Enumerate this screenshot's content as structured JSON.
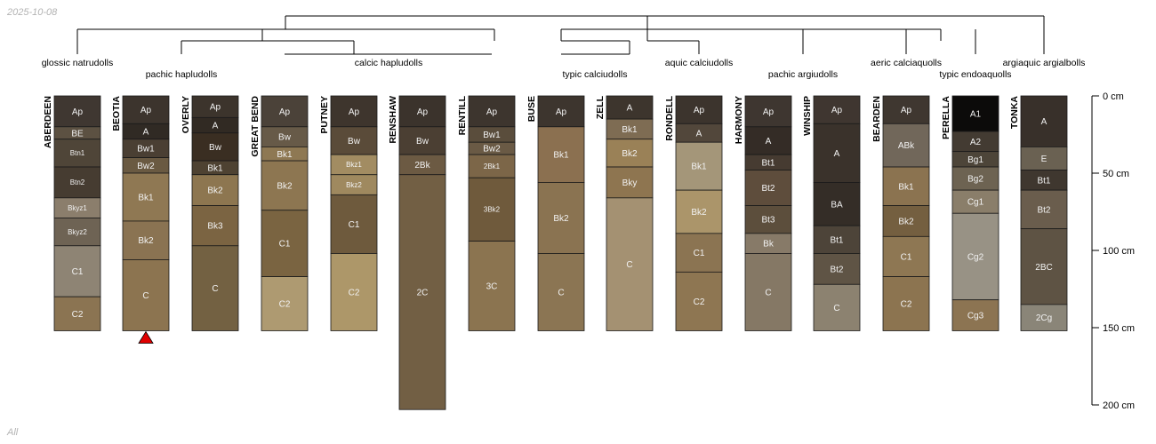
{
  "meta": {
    "date_text": "2025-10-08",
    "subset_text": "All"
  },
  "depth_axis": {
    "ticks": [
      0,
      50,
      100,
      150,
      200
    ],
    "unit": "cm",
    "max": 200
  },
  "classes": [
    "glossic natrudolls",
    "pachic hapludolls",
    "calcic hapludolls",
    "typic calciudolls",
    "aquic calciudolls",
    "pachic argiudolls",
    "aeric calciaquolls",
    "typic endoaquolls",
    "argiaquic argialbolls"
  ],
  "profiles": [
    {
      "name": "ABERDEEN",
      "marker": false,
      "horizons": [
        {
          "name": "Ap",
          "top": 0,
          "bottom": 20,
          "color": "#3f3731"
        },
        {
          "name": "BE",
          "top": 20,
          "bottom": 28,
          "color": "#5c5142"
        },
        {
          "name": "Btn1",
          "top": 28,
          "bottom": 46,
          "color": "#4f4538"
        },
        {
          "name": "Btn2",
          "top": 46,
          "bottom": 66,
          "color": "#463c31"
        },
        {
          "name": "Bkyz1",
          "top": 66,
          "bottom": 79,
          "color": "#8b7e6c"
        },
        {
          "name": "Bkyz2",
          "top": 79,
          "bottom": 97,
          "color": "#6e6354"
        },
        {
          "name": "C1",
          "top": 97,
          "bottom": 130,
          "color": "#8e8474"
        },
        {
          "name": "C2",
          "top": 130,
          "bottom": 152,
          "color": "#8b7452"
        }
      ]
    },
    {
      "name": "BEOTIA",
      "marker": true,
      "horizons": [
        {
          "name": "Ap",
          "top": 0,
          "bottom": 18,
          "color": "#3c342d"
        },
        {
          "name": "A",
          "top": 18,
          "bottom": 28,
          "color": "#302a24"
        },
        {
          "name": "Bw1",
          "top": 28,
          "bottom": 40,
          "color": "#4a3f33"
        },
        {
          "name": "Bw2",
          "top": 40,
          "bottom": 50,
          "color": "#6a5a42"
        },
        {
          "name": "Bk1",
          "top": 50,
          "bottom": 81,
          "color": "#8f7853"
        },
        {
          "name": "Bk2",
          "top": 81,
          "bottom": 106,
          "color": "#8a7352"
        },
        {
          "name": "C",
          "top": 106,
          "bottom": 152,
          "color": "#8c7450"
        }
      ]
    },
    {
      "name": "OVERLY",
      "marker": false,
      "horizons": [
        {
          "name": "Ap",
          "top": 0,
          "bottom": 14,
          "color": "#3c342c"
        },
        {
          "name": "A",
          "top": 14,
          "bottom": 24,
          "color": "#312a23"
        },
        {
          "name": "Bw",
          "top": 24,
          "bottom": 42,
          "color": "#3a2e22"
        },
        {
          "name": "Bk1",
          "top": 42,
          "bottom": 51,
          "color": "#4e4232"
        },
        {
          "name": "Bk2",
          "top": 51,
          "bottom": 71,
          "color": "#8d7650"
        },
        {
          "name": "Bk3",
          "top": 71,
          "bottom": 97,
          "color": "#7b6442"
        },
        {
          "name": "C",
          "top": 97,
          "bottom": 152,
          "color": "#736142"
        }
      ]
    },
    {
      "name": "GREAT BEND",
      "marker": false,
      "horizons": [
        {
          "name": "Ap",
          "top": 0,
          "bottom": 20,
          "color": "#4b4239"
        },
        {
          "name": "Bw",
          "top": 20,
          "bottom": 33,
          "color": "#675a48"
        },
        {
          "name": "Bk1",
          "top": 33,
          "bottom": 42,
          "color": "#8e7853"
        },
        {
          "name": "Bk2",
          "top": 42,
          "bottom": 74,
          "color": "#8d7651"
        },
        {
          "name": "C1",
          "top": 74,
          "bottom": 117,
          "color": "#7a6441"
        },
        {
          "name": "C2",
          "top": 117,
          "bottom": 152,
          "color": "#ae9a71"
        }
      ]
    },
    {
      "name": "PUTNEY",
      "marker": false,
      "horizons": [
        {
          "name": "Ap",
          "top": 0,
          "bottom": 20,
          "color": "#3e352d"
        },
        {
          "name": "Bw",
          "top": 20,
          "bottom": 38,
          "color": "#5a4b39"
        },
        {
          "name": "Bkz1",
          "top": 38,
          "bottom": 51,
          "color": "#a28c62"
        },
        {
          "name": "Bkz2",
          "top": 51,
          "bottom": 64,
          "color": "#9f895f"
        },
        {
          "name": "C1",
          "top": 64,
          "bottom": 102,
          "color": "#6e5a3d"
        },
        {
          "name": "C2",
          "top": 102,
          "bottom": 152,
          "color": "#ad9769"
        }
      ]
    },
    {
      "name": "RENSHAW",
      "marker": false,
      "horizons": [
        {
          "name": "Ap",
          "top": 0,
          "bottom": 20,
          "color": "#3b332c"
        },
        {
          "name": "Bw",
          "top": 20,
          "bottom": 38,
          "color": "#4b3f33"
        },
        {
          "name": "2Bk",
          "top": 38,
          "bottom": 51,
          "color": "#6c5a43"
        },
        {
          "name": "2C",
          "top": 51,
          "bottom": 203,
          "color": "#725f44"
        }
      ]
    },
    {
      "name": "RENTILL",
      "marker": false,
      "horizons": [
        {
          "name": "Ap",
          "top": 0,
          "bottom": 20,
          "color": "#3d352e"
        },
        {
          "name": "Bw1",
          "top": 20,
          "bottom": 30,
          "color": "#5a4d3c"
        },
        {
          "name": "Bw2",
          "top": 30,
          "bottom": 38,
          "color": "#6a5a45"
        },
        {
          "name": "2Bk1",
          "top": 38,
          "bottom": 53,
          "color": "#7c6648"
        },
        {
          "name": "3Bk2",
          "top": 53,
          "bottom": 94,
          "color": "#6f5a3c"
        },
        {
          "name": "3C",
          "top": 94,
          "bottom": 152,
          "color": "#8b7450"
        }
      ]
    },
    {
      "name": "BUSE",
      "marker": false,
      "horizons": [
        {
          "name": "Ap",
          "top": 0,
          "bottom": 20,
          "color": "#3d352e"
        },
        {
          "name": "Bk1",
          "top": 20,
          "bottom": 56,
          "color": "#8b7050"
        },
        {
          "name": "Bk2",
          "top": 56,
          "bottom": 102,
          "color": "#8a7351"
        },
        {
          "name": "C",
          "top": 102,
          "bottom": 152,
          "color": "#8b7553"
        }
      ]
    },
    {
      "name": "ZELL",
      "marker": false,
      "horizons": [
        {
          "name": "A",
          "top": 0,
          "bottom": 15,
          "color": "#3d352d"
        },
        {
          "name": "Bk1",
          "top": 15,
          "bottom": 28,
          "color": "#7e6c53"
        },
        {
          "name": "Bk2",
          "top": 28,
          "bottom": 46,
          "color": "#9a8157"
        },
        {
          "name": "Bky",
          "top": 46,
          "bottom": 66,
          "color": "#8e7550"
        },
        {
          "name": "C",
          "top": 66,
          "bottom": 152,
          "color": "#a49172"
        }
      ]
    },
    {
      "name": "RONDELL",
      "marker": false,
      "horizons": [
        {
          "name": "Ap",
          "top": 0,
          "bottom": 18,
          "color": "#3c342d"
        },
        {
          "name": "A",
          "top": 18,
          "bottom": 30,
          "color": "#52473b"
        },
        {
          "name": "Bk1",
          "top": 30,
          "bottom": 61,
          "color": "#a49679"
        },
        {
          "name": "Bk2",
          "top": 61,
          "bottom": 89,
          "color": "#ab956a"
        },
        {
          "name": "C1",
          "top": 89,
          "bottom": 114,
          "color": "#8b7452"
        },
        {
          "name": "C2",
          "top": 114,
          "bottom": 152,
          "color": "#8e7652"
        }
      ]
    },
    {
      "name": "HARMONY",
      "marker": false,
      "horizons": [
        {
          "name": "Ap",
          "top": 0,
          "bottom": 20,
          "color": "#3e3630"
        },
        {
          "name": "A",
          "top": 20,
          "bottom": 38,
          "color": "#342c26"
        },
        {
          "name": "Bt1",
          "top": 38,
          "bottom": 48,
          "color": "#463b31"
        },
        {
          "name": "Bt2",
          "top": 48,
          "bottom": 71,
          "color": "#5e4d3c"
        },
        {
          "name": "Bt3",
          "top": 71,
          "bottom": 89,
          "color": "#5c4e3c"
        },
        {
          "name": "Bk",
          "top": 89,
          "bottom": 102,
          "color": "#877a68"
        },
        {
          "name": "C",
          "top": 102,
          "bottom": 152,
          "color": "#857865"
        }
      ]
    },
    {
      "name": "WINSHIP",
      "marker": false,
      "horizons": [
        {
          "name": "Ap",
          "top": 0,
          "bottom": 18,
          "color": "#3f3630"
        },
        {
          "name": "A",
          "top": 18,
          "bottom": 56,
          "color": "#3a322b"
        },
        {
          "name": "BA",
          "top": 56,
          "bottom": 84,
          "color": "#342d27"
        },
        {
          "name": "Bt1",
          "top": 84,
          "bottom": 102,
          "color": "#4d4439"
        },
        {
          "name": "Bt2",
          "top": 102,
          "bottom": 122,
          "color": "#5f5445"
        },
        {
          "name": "C",
          "top": 122,
          "bottom": 152,
          "color": "#8c8270"
        }
      ]
    },
    {
      "name": "BEARDEN",
      "marker": false,
      "horizons": [
        {
          "name": "Ap",
          "top": 0,
          "bottom": 18,
          "color": "#3f3730"
        },
        {
          "name": "ABk",
          "top": 18,
          "bottom": 46,
          "color": "#71675a"
        },
        {
          "name": "Bk1",
          "top": 46,
          "bottom": 71,
          "color": "#8b7350"
        },
        {
          "name": "Bk2",
          "top": 71,
          "bottom": 91,
          "color": "#745f40"
        },
        {
          "name": "C1",
          "top": 91,
          "bottom": 117,
          "color": "#8e7753"
        },
        {
          "name": "C2",
          "top": 117,
          "bottom": 152,
          "color": "#8c7450"
        }
      ]
    },
    {
      "name": "PERELLA",
      "marker": false,
      "horizons": [
        {
          "name": "A1",
          "top": 0,
          "bottom": 23,
          "color": "#0c0b0a"
        },
        {
          "name": "A2",
          "top": 23,
          "bottom": 36,
          "color": "#433b32"
        },
        {
          "name": "Bg1",
          "top": 36,
          "bottom": 46,
          "color": "#4d4539"
        },
        {
          "name": "Bg2",
          "top": 46,
          "bottom": 61,
          "color": "#6d6352"
        },
        {
          "name": "Cg1",
          "top": 61,
          "bottom": 76,
          "color": "#8a7e6a"
        },
        {
          "name": "Cg2",
          "top": 76,
          "bottom": 132,
          "color": "#989285"
        },
        {
          "name": "Cg3",
          "top": 132,
          "bottom": 152,
          "color": "#8c7452"
        }
      ]
    },
    {
      "name": "TONKA",
      "marker": false,
      "horizons": [
        {
          "name": "A",
          "top": 0,
          "bottom": 33,
          "color": "#38302a"
        },
        {
          "name": "E",
          "top": 33,
          "bottom": 48,
          "color": "#6a6152"
        },
        {
          "name": "Bt1",
          "top": 48,
          "bottom": 61,
          "color": "#3f372f"
        },
        {
          "name": "Bt2",
          "top": 61,
          "bottom": 86,
          "color": "#6a5d4d"
        },
        {
          "name": "2BC",
          "top": 86,
          "bottom": 135,
          "color": "#5e5344"
        },
        {
          "name": "2Cg",
          "top": 135,
          "bottom": 152,
          "color": "#8a8578"
        }
      ]
    }
  ]
}
